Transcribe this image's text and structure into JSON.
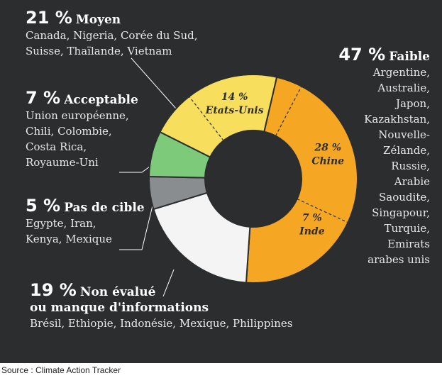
{
  "source": "Source : Climate Action Tracker",
  "chart_data": {
    "type": "pie",
    "categories": [
      "Faible",
      "Non évalué ou manque d'informations",
      "Pas de cible",
      "Acceptable",
      "Moyen"
    ],
    "values": [
      47,
      19,
      5,
      7,
      21
    ],
    "units": "%",
    "colors": [
      "#f5a623",
      "#f4f4f4",
      "#8a8d90",
      "#7dcb7a",
      "#f7de5c"
    ],
    "sub_slices": [
      {
        "label": "Chine",
        "value": 28,
        "text": "28 %"
      },
      {
        "label": "Inde",
        "value": 7,
        "text": "7 %"
      },
      {
        "label": "Etats-Unis",
        "value": 14,
        "text": "14 %"
      }
    ]
  },
  "groups": [
    {
      "pct": "21 %",
      "name": "Moyen",
      "countries": [
        "Canada, Nigeria, Corée du Sud,",
        "Suisse, Thaïlande, Vietnam"
      ]
    },
    {
      "pct": "7 %",
      "name": "Acceptable",
      "countries": [
        "Union européenne,",
        "Chili, Colombie,",
        "Costa Rica,",
        "Royaume-Uni"
      ]
    },
    {
      "pct": "5 %",
      "name": "Pas de cible",
      "countries": [
        "Egypte, Iran,",
        "Kenya, Mexique"
      ]
    },
    {
      "pct": "19 %",
      "name": "Non évalué",
      "name2": "ou manque d'informations",
      "countries": [
        "Brésil, Ethiopie, Indonésie, Mexique, Philippines"
      ]
    },
    {
      "pct": "47 %",
      "name": "Faible",
      "countries": [
        "Argentine,",
        "Australie,",
        "Japon,",
        "Kazakhstan,",
        "Nouvelle-",
        "Zélande,",
        "Russie,",
        "Arabie",
        "Saoudite,",
        "Singapour,",
        "Turquie,",
        "Emirats",
        "arabes unis"
      ]
    }
  ]
}
